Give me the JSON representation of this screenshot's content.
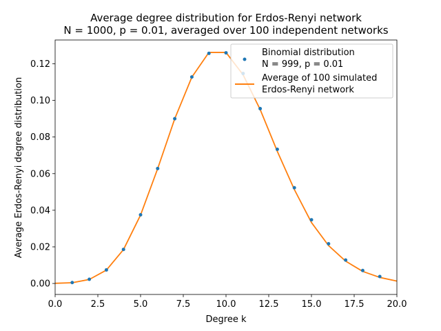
{
  "chart_data": {
    "type": "line",
    "title_lines": [
      "Average degree distribution for Erdos-Renyi network",
      "N = 1000, p = 0.01, averaged over 100 independent networks"
    ],
    "xlabel": "Degree k",
    "ylabel": "Average Erdos-Renyi degree distribution",
    "xlim": [
      0,
      20
    ],
    "ylim": [
      -0.006,
      0.133
    ],
    "xticks": [
      0,
      2.5,
      5,
      7.5,
      10,
      12.5,
      15,
      17.5,
      20
    ],
    "xtick_labels": [
      "0.0",
      "2.5",
      "5.0",
      "7.5",
      "10.0",
      "12.5",
      "15.0",
      "17.5",
      "20.0"
    ],
    "yticks": [
      0,
      0.02,
      0.04,
      0.06,
      0.08,
      0.1,
      0.12
    ],
    "ytick_labels": [
      "0.00",
      "0.02",
      "0.04",
      "0.06",
      "0.08",
      "0.10",
      "0.12"
    ],
    "grid": false,
    "legend_position": "top-right",
    "series": [
      {
        "name": "Binomial distribution\nN = 999, p = 0.01",
        "kind": "scatter",
        "color": "#1f77b4",
        "x": [
          1,
          2,
          3,
          4,
          5,
          6,
          7,
          8,
          9,
          10,
          11,
          12,
          13,
          14,
          15,
          16,
          17,
          18,
          19
        ],
        "y": [
          0.0005,
          0.0023,
          0.0074,
          0.0186,
          0.0375,
          0.0628,
          0.09,
          0.1128,
          0.1257,
          0.126,
          0.1147,
          0.0955,
          0.0733,
          0.0523,
          0.0348,
          0.0217,
          0.0128,
          0.0071,
          0.0038
        ]
      },
      {
        "name": "Average of 100 simulated\nErdos-Renyi network",
        "kind": "line",
        "color": "#ff7f0e",
        "x": [
          0,
          1,
          2,
          3,
          4,
          5,
          6,
          7,
          8,
          9,
          10,
          11,
          12,
          13,
          14,
          15,
          16,
          17,
          18,
          19,
          20
        ],
        "y": [
          0.0001,
          0.0004,
          0.0022,
          0.0073,
          0.0185,
          0.0374,
          0.0627,
          0.09,
          0.1127,
          0.1262,
          0.1262,
          0.114,
          0.095,
          0.0722,
          0.0513,
          0.0333,
          0.0207,
          0.0122,
          0.0066,
          0.0033,
          0.0013
        ]
      }
    ]
  }
}
